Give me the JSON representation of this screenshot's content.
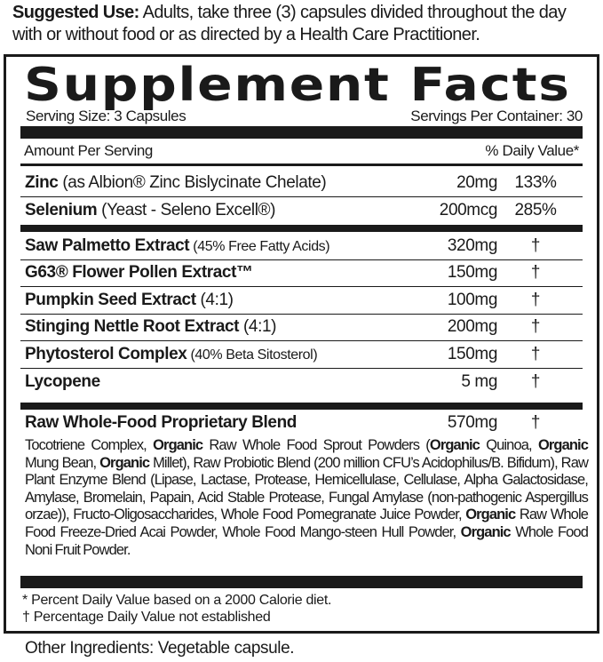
{
  "suggested_use": {
    "label": "Suggested Use:",
    "text": " Adults, take three (3) capsules divided throughout the day with or without food or as directed by a Health Care Practitioner."
  },
  "title": "Supplement Facts",
  "serving_size": "Serving Size: 3 Capsules",
  "servings_per_container": "Servings Per Container: 30",
  "amount_header": "Amount Per Serving",
  "dv_header": "% Daily Value*",
  "rows": [
    {
      "name": "Zinc",
      "detail": " (as Albion® Zinc Bislycinate Chelate)",
      "amount": "20mg",
      "dv": "133%"
    },
    {
      "name": "Selenium",
      "detail": " (Yeast - Seleno Excell®)",
      "amount": "200mcg",
      "dv": "285%"
    },
    {
      "name": "Saw Palmetto Extract",
      "detail": " (45% Free Fatty Acids)",
      "amount": "320mg",
      "dv": "†"
    },
    {
      "name": "G63® Flower Pollen Extract™",
      "detail": "",
      "amount": "150mg",
      "dv": "†"
    },
    {
      "name": "Pumpkin Seed Extract",
      "detail": " (4:1)",
      "amount": "100mg",
      "dv": "†"
    },
    {
      "name": "Stinging Nettle Root Extract",
      "detail": " (4:1)",
      "amount": "200mg",
      "dv": "†"
    },
    {
      "name": "Phytosterol Complex",
      "detail": " (40% Beta Sitosterol)",
      "amount": "150mg",
      "dv": "†"
    },
    {
      "name": "Lycopene",
      "detail": "",
      "amount": "5 mg",
      "dv": "†"
    },
    {
      "name": "Raw Whole-Food Proprietary Blend",
      "detail": "",
      "amount": "570mg",
      "dv": "†"
    }
  ],
  "blend": [
    "Tocotriene Complex, ",
    "Organic",
    " Raw Whole Food Sprout Powders (",
    "Organic",
    " Quinoa, ",
    "Organic",
    " Mung Bean, ",
    "Organic",
    " Millet), Raw Probiotic Blend (200 million CFU’s Acidophilus/B. Bifidum), Raw Plant Enzyme Blend (Lipase, Lactase, Protease, Hemicellulase, Cellulase, Alpha Galactosidase, Amylase, Bromelain, Papain, Acid Stable Protease, Fungal Amylase (non-pathogenic Aspergillus orzae)), Fructo-Oligosaccharides, Whole Food Pomegranate Juice Powder, ",
    "Organic",
    " Raw Whole Food Freeze-Dried Acai Powder, Whole Food Mango-steen Hull Powder, ",
    "Organic",
    " Whole Food Noni Fruit Powder."
  ],
  "footnotes": [
    "* Percent Daily Value  based on a 2000 Calorie diet.",
    "† Percentage Daily Value not established"
  ],
  "other_ingredients": "Other Ingredients: Vegetable capsule."
}
